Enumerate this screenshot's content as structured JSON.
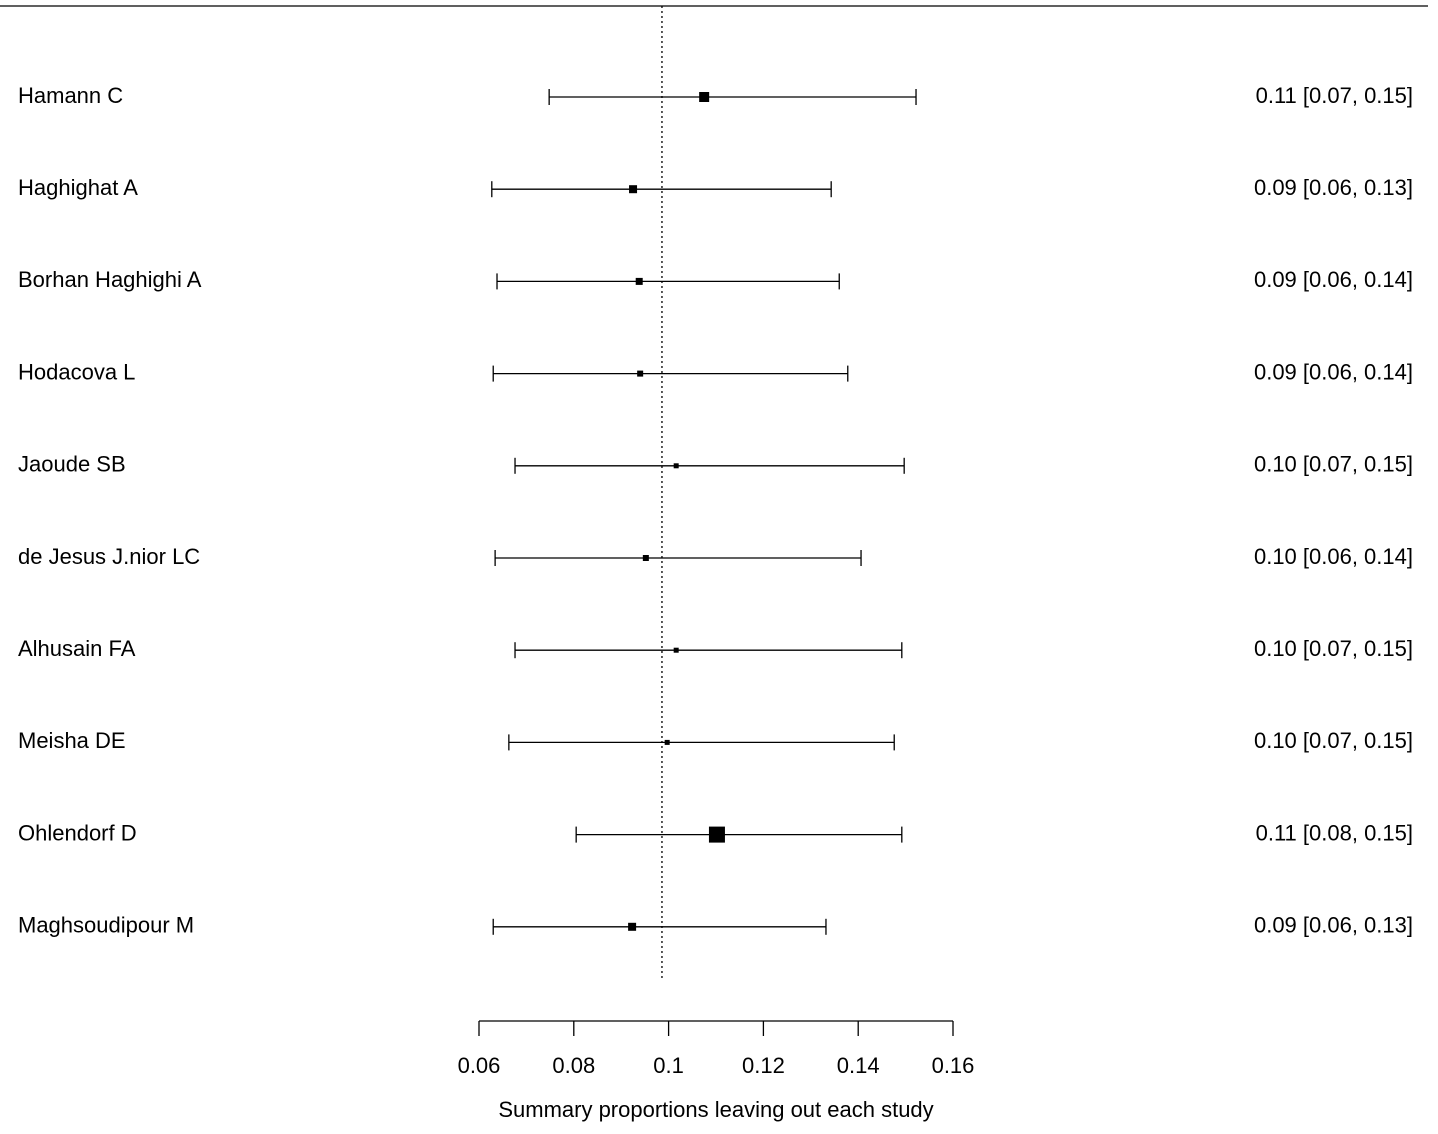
{
  "chart_data": {
    "type": "forest",
    "xlabel": "Summary proportions leaving out each study",
    "categories": [
      "Hamann C",
      "Haghighat A",
      "Borhan Haghighi A",
      "Hodacova L",
      "Jaoude SB",
      "de Jesus J.nior LC",
      "Alhusain FA",
      "Meisha DE",
      "Ohlendorf D",
      "Maghsoudipour M"
    ],
    "values": [
      0.1075,
      0.0925,
      0.0938,
      0.094,
      0.1016,
      0.0952,
      0.1016,
      0.0997,
      0.1102,
      0.0923
    ],
    "lower": [
      0.0748,
      0.0627,
      0.0638,
      0.063,
      0.0676,
      0.0634,
      0.0676,
      0.0663,
      0.0805,
      0.063
    ],
    "upper": [
      0.1522,
      0.1343,
      0.136,
      0.1378,
      0.1497,
      0.1406,
      0.1492,
      0.1476,
      0.1492,
      0.1332
    ],
    "weights": [
      10,
      8,
      7,
      6,
      5,
      6,
      5,
      5,
      16,
      8
    ],
    "value_labels": [
      "0.11 [0.07, 0.15]",
      "0.09 [0.06, 0.13]",
      "0.09 [0.06, 0.14]",
      "0.09 [0.06, 0.14]",
      "0.10 [0.07, 0.15]",
      "0.10 [0.06, 0.14]",
      "0.10 [0.07, 0.15]",
      "0.10 [0.07, 0.15]",
      "0.11 [0.08, 0.15]",
      "0.09 [0.06, 0.13]"
    ],
    "reference_line": 0.0986,
    "color": "#000000",
    "xlim": [
      0.06,
      0.16
    ],
    "xticks": [
      0.06,
      0.08,
      0.1,
      0.12,
      0.14,
      0.16
    ]
  }
}
